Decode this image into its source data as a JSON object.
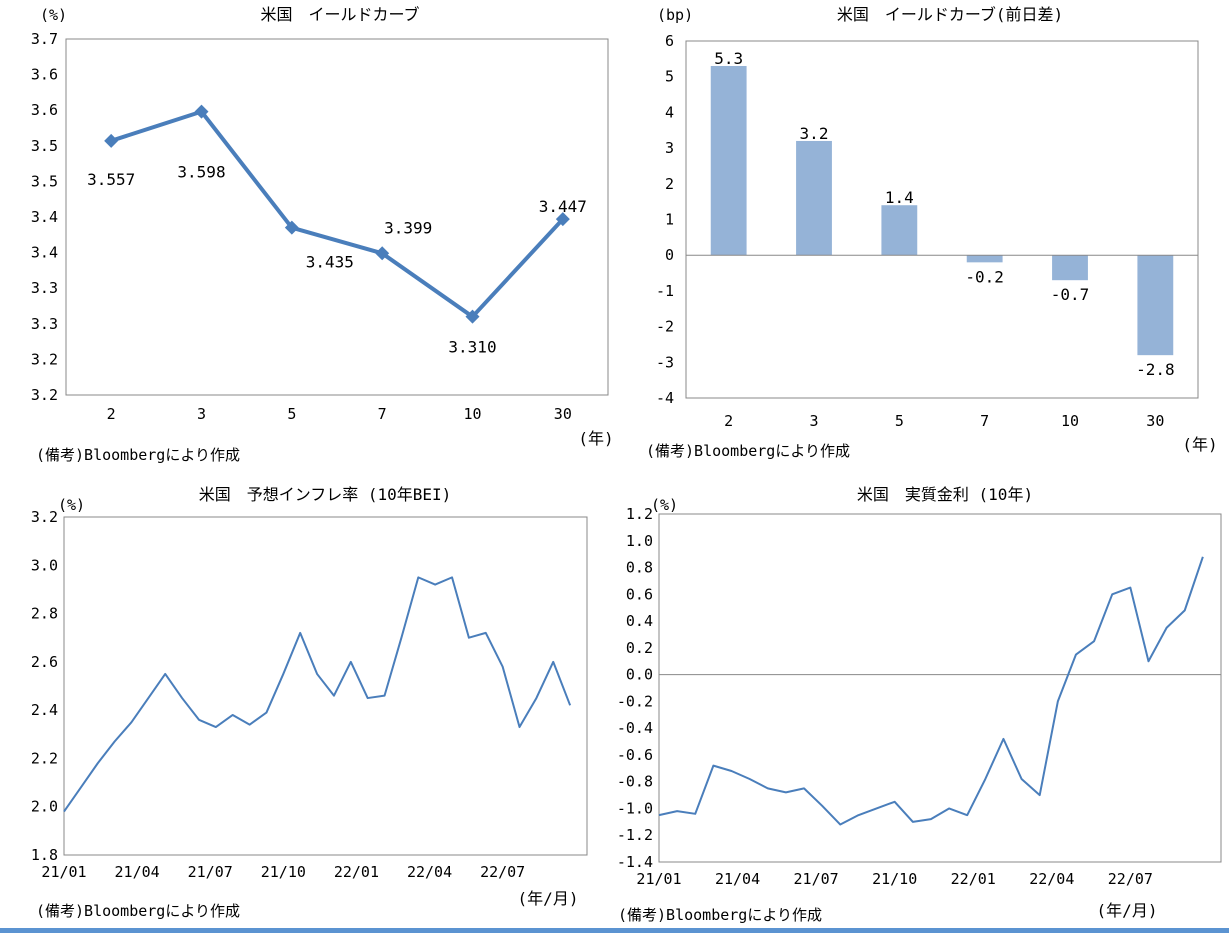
{
  "notes": {
    "source": "(備考)Bloombergにより作成",
    "unit_year": "(年)",
    "unit_year_month": "(年/月)"
  },
  "chart_data": [
    {
      "id": "yield-curve",
      "type": "line",
      "title": "米国　イールドカーブ",
      "ylabel": "(%)",
      "xlabel": "(年)",
      "categories": [
        "2",
        "3",
        "5",
        "7",
        "10",
        "30"
      ],
      "values": [
        3.557,
        3.598,
        3.435,
        3.399,
        3.31,
        3.447
      ],
      "value_labels": [
        "3.557",
        "3.598",
        "3.435",
        "3.399",
        "3.310",
        "3.447"
      ],
      "ylim": [
        3.2,
        3.7
      ],
      "ytick_labels": [
        "3.7",
        "3.6",
        "3.6",
        "3.5",
        "3.5",
        "3.4",
        "3.4",
        "3.3",
        "3.3",
        "3.2",
        "3.2"
      ],
      "color": "#4a7ebb"
    },
    {
      "id": "yield-change",
      "type": "bar",
      "title": "米国　イールドカーブ(前日差)",
      "ylabel": "(bp)",
      "xlabel": "(年)",
      "categories": [
        "2",
        "3",
        "5",
        "7",
        "10",
        "30"
      ],
      "values": [
        5.3,
        3.2,
        1.4,
        -0.2,
        -0.7,
        -2.8
      ],
      "value_labels": [
        "5.3",
        "3.2",
        "1.4",
        "-0.2",
        "-0.7",
        "-2.8"
      ],
      "ylim": [
        -4,
        6
      ],
      "ytick_labels": [
        "6",
        "5",
        "4",
        "3",
        "2",
        "1",
        "0",
        "-1",
        "-2",
        "-3",
        "-4"
      ],
      "color": "#95b3d7"
    },
    {
      "id": "bei",
      "type": "line",
      "title": "米国　予想インフレ率 (10年BEI)",
      "ylabel": "(%)",
      "xlabel": "(年/月)",
      "ylim": [
        1.8,
        3.2
      ],
      "ytick_labels": [
        "3.2",
        "3.0",
        "2.8",
        "2.6",
        "2.4",
        "2.2",
        "2.0",
        "1.8"
      ],
      "xtick_labels": [
        "21/01",
        "21/04",
        "21/07",
        "21/10",
        "22/01",
        "22/04",
        "22/07"
      ],
      "x": [
        0,
        3,
        6,
        9,
        12,
        15,
        18,
        21,
        24,
        27,
        30,
        33,
        36,
        39,
        42,
        45,
        48,
        51,
        54,
        57,
        60,
        63,
        66,
        69,
        72,
        75,
        78,
        81,
        84,
        87,
        90
      ],
      "values": [
        1.98,
        2.08,
        2.18,
        2.27,
        2.35,
        2.45,
        2.55,
        2.45,
        2.36,
        2.33,
        2.38,
        2.34,
        2.39,
        2.55,
        2.72,
        2.55,
        2.46,
        2.6,
        2.45,
        2.46,
        2.7,
        2.95,
        2.92,
        2.95,
        2.7,
        2.72,
        2.58,
        2.33,
        2.45,
        2.6,
        2.42
      ],
      "color": "#4a7ebb"
    },
    {
      "id": "real-rate",
      "type": "line",
      "title": "米国　実質金利 (10年)",
      "ylabel": "(%)",
      "xlabel": "(年/月)",
      "ylim": [
        -1.4,
        1.2
      ],
      "ytick_labels": [
        "1.2",
        "1.0",
        "0.8",
        "0.6",
        "0.4",
        "0.2",
        "0.0",
        "-0.2",
        "-0.4",
        "-0.6",
        "-0.8",
        "-1.0",
        "-1.2",
        "-1.4"
      ],
      "xtick_labels": [
        "21/01",
        "21/04",
        "21/07",
        "21/10",
        "22/01",
        "22/04",
        "22/07"
      ],
      "x": [
        0,
        3,
        6,
        9,
        12,
        15,
        18,
        21,
        24,
        27,
        30,
        33,
        36,
        39,
        42,
        45,
        48,
        51,
        54,
        57,
        60,
        63,
        66,
        69,
        72,
        75,
        78,
        81,
        84,
        87,
        90
      ],
      "values": [
        -1.05,
        -1.02,
        -1.04,
        -0.68,
        -0.72,
        -0.78,
        -0.85,
        -0.88,
        -0.85,
        -0.98,
        -1.12,
        -1.05,
        -1.0,
        -0.95,
        -1.1,
        -1.08,
        -1.0,
        -1.05,
        -0.78,
        -0.48,
        -0.78,
        -0.9,
        -0.2,
        0.15,
        0.25,
        0.6,
        0.65,
        0.1,
        0.35,
        0.48,
        0.88
      ],
      "color": "#4a7ebb"
    }
  ]
}
